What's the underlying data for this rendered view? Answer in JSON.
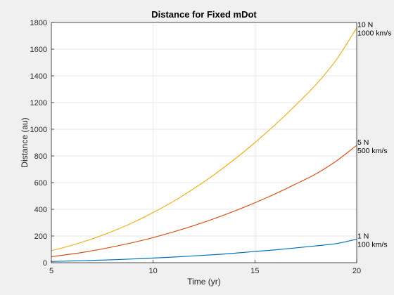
{
  "chart_data": {
    "type": "line",
    "title": "Distance for Fixed mDot",
    "xlabel": "Time (yr)",
    "ylabel": "Distance (au)",
    "xlim": [
      5,
      20
    ],
    "ylim": [
      0,
      1800
    ],
    "xticks": [
      5,
      10,
      15,
      20
    ],
    "yticks": [
      0,
      200,
      400,
      600,
      800,
      1000,
      1200,
      1400,
      1600,
      1800
    ],
    "grid": true,
    "x": [
      5,
      6,
      7,
      8,
      9,
      10,
      11,
      12,
      13,
      14,
      15,
      16,
      17,
      18,
      19,
      20
    ],
    "series": [
      {
        "color": "#0072bd",
        "values": [
          9,
          13,
          17,
          22,
          28,
          35,
          42,
          51,
          60,
          71,
          84,
          96,
          111,
          126,
          143,
          176
        ],
        "annotation": [
          "1 N",
          "100 km/s"
        ]
      },
      {
        "color": "#d95319",
        "values": [
          45,
          65,
          89,
          118,
          151,
          188,
          231,
          278,
          330,
          387,
          449,
          516,
          589,
          666,
          762,
          880
        ],
        "annotation": [
          "5 N",
          "500 km/s"
        ]
      },
      {
        "color": "#edb120",
        "values": [
          90,
          130,
          178,
          235,
          300,
          376,
          460,
          555,
          660,
          775,
          900,
          1035,
          1180,
          1335,
          1520,
          1760
        ],
        "annotation": [
          "10 N",
          "1000 km/s"
        ]
      }
    ]
  }
}
